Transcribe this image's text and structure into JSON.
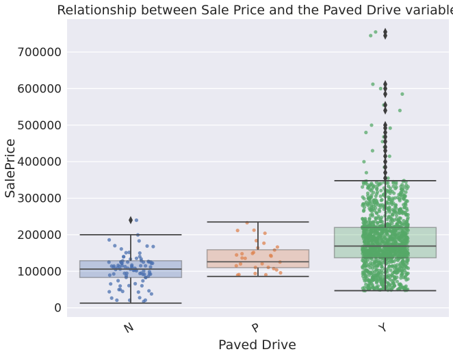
{
  "chart_data": {
    "type": "box",
    "title": "Relationship between Sale Price and the Paved Drive variable",
    "xlabel": "Paved Drive",
    "ylabel": "SalePrice",
    "categories": [
      "N",
      "P",
      "Y"
    ],
    "ylim": [
      -25000,
      790000
    ],
    "yticks": [
      0,
      100000,
      200000,
      300000,
      400000,
      500000,
      600000,
      700000
    ],
    "ytick_labels": [
      "0",
      "100000",
      "200000",
      "300000",
      "400000",
      "500000",
      "600000",
      "700000"
    ],
    "grid": true,
    "boxes": [
      {
        "category": "N",
        "whisker_low": 13000,
        "q1": 83000,
        "median": 106000,
        "q3": 129000,
        "whisker_high": 200000,
        "outliers": [
          240000
        ],
        "color": "#4c72b0",
        "n_points": 90
      },
      {
        "category": "P",
        "whisker_low": 86000,
        "q1": 110000,
        "median": 126000,
        "q3": 159000,
        "whisker_high": 235000,
        "outliers": [],
        "color": "#dd8452",
        "n_points": 30
      },
      {
        "category": "Y",
        "whisker_low": 47000,
        "q1": 137000,
        "median": 169000,
        "q3": 220000,
        "whisker_high": 348000,
        "outliers": [
          355000,
          370000,
          385000,
          400000,
          415000,
          430000,
          440000,
          455000,
          468000,
          480000,
          492000,
          500000,
          540000,
          555000,
          585000,
          600000,
          612000,
          745000,
          755000
        ],
        "color": "#55a868",
        "n_points": 1340
      }
    ]
  }
}
